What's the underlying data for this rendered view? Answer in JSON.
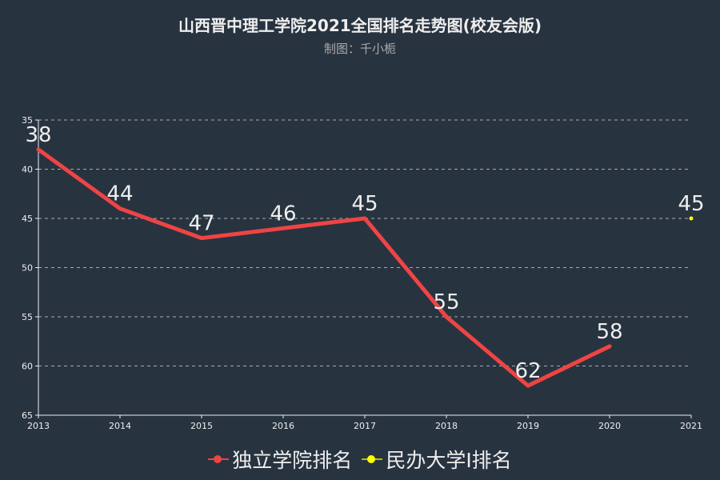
{
  "title": "山西晋中理工学院2021全国排名走势图(校友会版)",
  "subtitle": "制图：千小栀",
  "legend": [
    {
      "label": "独立学院排名",
      "color": "#ef4444"
    },
    {
      "label": "民办大学Ⅰ排名",
      "color": "#ffff00"
    }
  ],
  "chart_data": {
    "type": "line",
    "title": "山西晋中理工学院2021全国排名走势图(校友会版)",
    "subtitle": "制图：千小栀",
    "x": [
      "2013",
      "2014",
      "2015",
      "2016",
      "2017",
      "2018",
      "2019",
      "2020",
      "2021"
    ],
    "series": [
      {
        "name": "独立学院排名",
        "color": "#ef4444",
        "values": [
          38,
          44,
          47,
          46,
          45,
          55,
          62,
          58,
          null
        ]
      },
      {
        "name": "民办大学Ⅰ排名",
        "color": "#ffff00",
        "values": [
          null,
          null,
          null,
          null,
          null,
          null,
          null,
          null,
          45
        ]
      }
    ],
    "yaxis": {
      "inverted": true,
      "ylim": [
        35,
        65
      ],
      "ticks": [
        35,
        40,
        45,
        50,
        55,
        60,
        65
      ]
    },
    "grid": true,
    "legend_position": "bottom"
  }
}
